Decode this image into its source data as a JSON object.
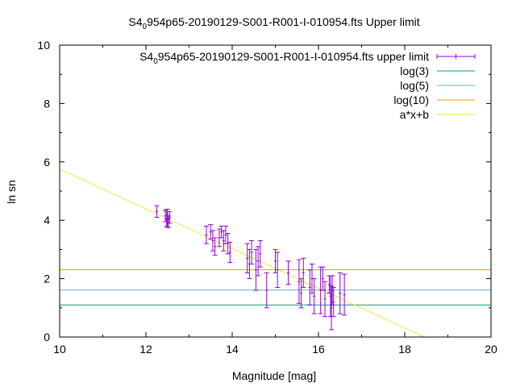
{
  "chart_data": {
    "type": "scatter",
    "title_main": "S4",
    "title_sub": "0",
    "title_rest": "954p65-20190129-S001-R001-I-010954.fts Upper limit",
    "xlabel": "Magnitude [mag]",
    "ylabel": "ln sn",
    "xlim": [
      10,
      20
    ],
    "ylim": [
      0,
      10
    ],
    "xticks": [
      "10",
      "12",
      "14",
      "16",
      "18",
      "20"
    ],
    "yticks": [
      "0",
      "2",
      "4",
      "6",
      "8",
      "10"
    ],
    "grid": false,
    "legend_position": "top-right",
    "legend": {
      "points_main": "S4",
      "points_sub": "0",
      "points_rest": "954p65-20190129-S001-R001-I-010954.fts upper limit",
      "log3": "log(3)",
      "log5": "log(5)",
      "log10": "log(10)",
      "fit": "a*x+b"
    },
    "colors": {
      "points": "#9400d3",
      "log3": "#009e73",
      "log5": "#56b4e9",
      "log10": "#e69f00",
      "fit": "#f0e442"
    },
    "hlines": {
      "log3": 1.0986,
      "log5": 1.6094,
      "log10": 2.3026
    },
    "fit": {
      "a": -0.68,
      "b": 12.55
    },
    "points": [
      [
        12.25,
        4.3,
        0.2
      ],
      [
        12.45,
        4.15,
        0.2
      ],
      [
        12.48,
        4.05,
        0.25
      ],
      [
        12.5,
        4.2,
        0.18
      ],
      [
        12.52,
        3.95,
        0.2
      ],
      [
        12.55,
        4.1,
        0.2
      ],
      [
        12.5,
        3.9,
        0.15
      ],
      [
        13.4,
        3.5,
        0.3
      ],
      [
        13.5,
        3.6,
        0.25
      ],
      [
        13.55,
        3.3,
        0.35
      ],
      [
        13.6,
        3.1,
        0.3
      ],
      [
        13.7,
        3.4,
        0.3
      ],
      [
        13.75,
        3.6,
        0.2
      ],
      [
        13.8,
        3.3,
        0.35
      ],
      [
        13.85,
        3.5,
        0.3
      ],
      [
        13.9,
        3.2,
        0.35
      ],
      [
        13.95,
        2.9,
        0.35
      ],
      [
        14.35,
        2.7,
        0.5
      ],
      [
        14.4,
        2.5,
        0.5
      ],
      [
        14.45,
        2.9,
        0.4
      ],
      [
        14.55,
        2.3,
        0.7
      ],
      [
        14.6,
        2.6,
        0.5
      ],
      [
        14.65,
        2.85,
        0.45
      ],
      [
        14.8,
        1.6,
        0.6
      ],
      [
        15.0,
        2.6,
        0.4
      ],
      [
        15.05,
        2.3,
        0.6
      ],
      [
        15.3,
        2.2,
        0.4
      ],
      [
        15.55,
        1.9,
        0.75
      ],
      [
        15.6,
        1.5,
        0.5
      ],
      [
        15.65,
        2.2,
        0.5
      ],
      [
        15.8,
        1.7,
        0.6
      ],
      [
        15.85,
        2.0,
        0.5
      ],
      [
        15.9,
        1.4,
        0.6
      ],
      [
        16.05,
        1.6,
        0.8
      ],
      [
        16.1,
        2.0,
        0.4
      ],
      [
        16.15,
        1.3,
        0.6
      ],
      [
        16.25,
        1.8,
        0.3
      ],
      [
        16.28,
        1.4,
        0.7
      ],
      [
        16.3,
        1.0,
        0.75
      ],
      [
        16.32,
        1.6,
        0.5
      ],
      [
        16.35,
        1.2,
        0.5
      ],
      [
        16.5,
        1.5,
        0.7
      ],
      [
        16.6,
        1.45,
        0.7
      ]
    ]
  }
}
